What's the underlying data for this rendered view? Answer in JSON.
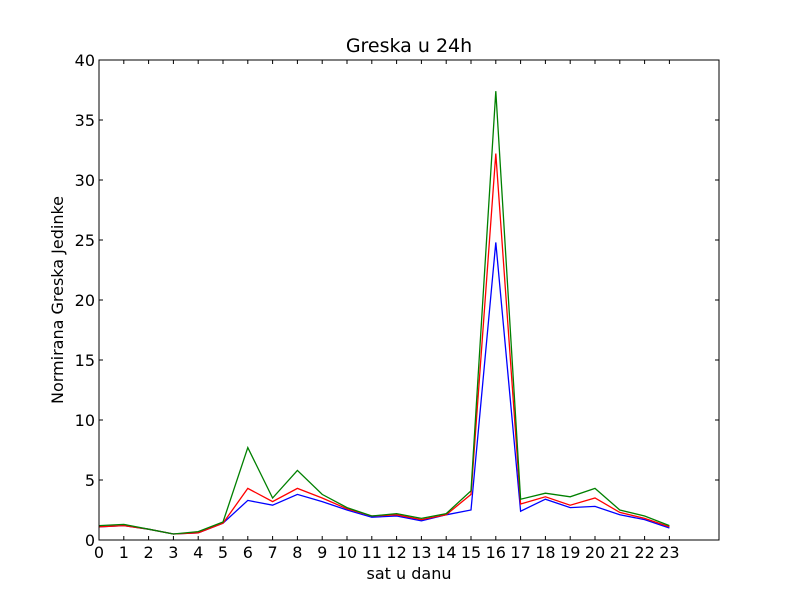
{
  "chart_data": {
    "type": "line",
    "title": "Greska u 24h",
    "xlabel": "sat u danu",
    "ylabel": "Normirana Greska Jedinke",
    "xlim": [
      0,
      25
    ],
    "ylim": [
      0,
      40
    ],
    "x": [
      0,
      1,
      2,
      3,
      4,
      5,
      6,
      7,
      8,
      9,
      10,
      11,
      12,
      13,
      14,
      15,
      16,
      17,
      18,
      19,
      20,
      21,
      22,
      23
    ],
    "xticks": [
      "0",
      "1",
      "2",
      "3",
      "4",
      "5",
      "6",
      "7",
      "8",
      "9",
      "10",
      "11",
      "12",
      "13",
      "14",
      "15",
      "16",
      "17",
      "18",
      "19",
      "20",
      "21",
      "22",
      "23"
    ],
    "yticks": [
      "0",
      "5",
      "10",
      "15",
      "20",
      "25",
      "30",
      "35",
      "40"
    ],
    "grid": false,
    "series": [
      {
        "color": "#0000ff",
        "values": [
          1.1,
          1.2,
          0.9,
          0.5,
          0.6,
          1.4,
          3.3,
          2.9,
          3.8,
          3.2,
          2.5,
          1.9,
          2.0,
          1.6,
          2.1,
          2.5,
          24.8,
          2.4,
          3.4,
          2.7,
          2.8,
          2.1,
          1.7,
          1.0
        ]
      },
      {
        "color": "#ff0000",
        "values": [
          1.1,
          1.2,
          0.9,
          0.5,
          0.6,
          1.4,
          4.3,
          3.2,
          4.3,
          3.5,
          2.6,
          2.0,
          2.1,
          1.7,
          2.1,
          3.8,
          32.2,
          3.0,
          3.6,
          2.9,
          3.5,
          2.3,
          1.8,
          1.1
        ]
      },
      {
        "color": "#008000",
        "values": [
          1.2,
          1.3,
          0.9,
          0.5,
          0.7,
          1.5,
          7.7,
          3.5,
          5.8,
          3.8,
          2.7,
          2.0,
          2.2,
          1.8,
          2.2,
          4.1,
          37.4,
          3.4,
          3.9,
          3.6,
          4.3,
          2.5,
          2.0,
          1.2
        ]
      }
    ]
  }
}
